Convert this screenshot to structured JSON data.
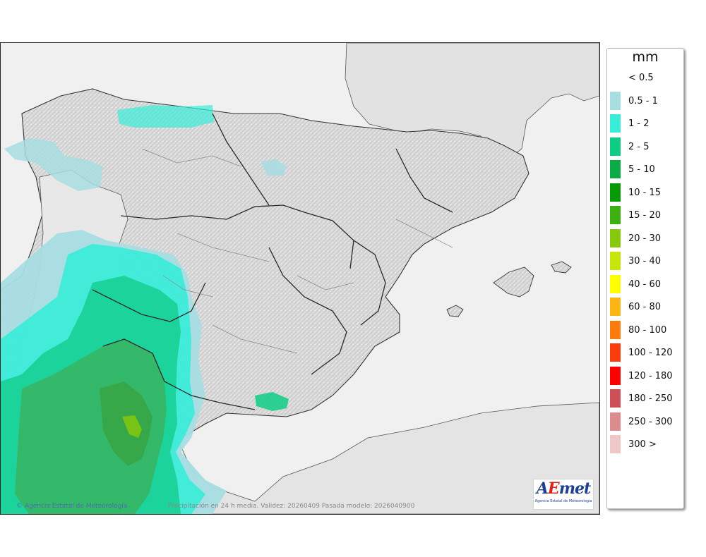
{
  "map": {
    "credit": "© Agencia Estatal de Meteorología",
    "caption": "Precipitación en 24 h media. Validez: 20260409 Pasada modelo: 2026040900",
    "logo": {
      "word_a": "A",
      "word_e": "E",
      "word_rest": "met",
      "subtitle": "Agencia Estatal de Meteorología"
    },
    "colors": {
      "sea": "#ececec",
      "land": "#e0e0e0",
      "border": "#333333"
    }
  },
  "legend": {
    "unit": "mm",
    "classes": [
      {
        "label": "< 0.5",
        "color": ""
      },
      {
        "label": "0.5 - 1",
        "color": "#a8dde1"
      },
      {
        "label": "1 - 2",
        "color": "#39ecd8"
      },
      {
        "label": "2 - 5",
        "color": "#0fcc85"
      },
      {
        "label": "5 - 10",
        "color": "#0aac48"
      },
      {
        "label": "10 - 15",
        "color": "#069a06"
      },
      {
        "label": "15 - 20",
        "color": "#3caf11"
      },
      {
        "label": "20 - 30",
        "color": "#87ca0b"
      },
      {
        "label": "30 - 40",
        "color": "#c6e50b"
      },
      {
        "label": "40 - 60",
        "color": "#ffff00"
      },
      {
        "label": "60 - 80",
        "color": "#fbb514"
      },
      {
        "label": "80 - 100",
        "color": "#fb7b0d"
      },
      {
        "label": "100 - 120",
        "color": "#fb3c0c"
      },
      {
        "label": "120 - 180",
        "color": "#fc0000"
      },
      {
        "label": "180 - 250",
        "color": "#cc5055"
      },
      {
        "label": "250 - 300",
        "color": "#dd8c8e"
      },
      {
        "label": "300 >",
        "color": "#efc8ca"
      }
    ]
  }
}
